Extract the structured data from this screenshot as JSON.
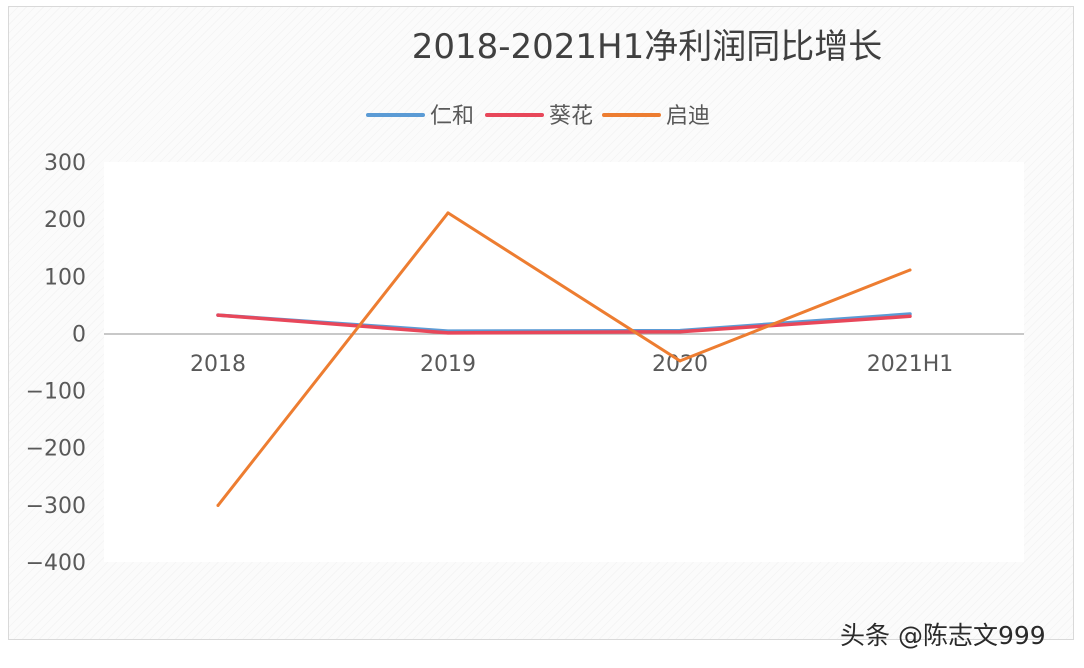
{
  "chart_data": {
    "type": "line",
    "title": "2018-2021H1净利润同比增长",
    "categories": [
      "2018",
      "2019",
      "2020",
      "2021H1"
    ],
    "series": [
      {
        "name": "仁和",
        "color": "#5b9bd5",
        "values": [
          32,
          4,
          5,
          34
        ]
      },
      {
        "name": "葵花",
        "color": "#e8475a",
        "values": [
          32,
          1,
          3,
          30
        ]
      },
      {
        "name": "启迪",
        "color": "#ed7d31",
        "values": [
          -301,
          211,
          -48,
          111
        ]
      }
    ],
    "ylim": [
      -400,
      300
    ],
    "yticks": [
      -400,
      -300,
      -200,
      -100,
      0,
      100,
      200,
      300
    ],
    "ytick_labels": [
      "−400",
      "−300",
      "−200",
      "−100",
      "0",
      "100",
      "200",
      "300"
    ],
    "xlabel": "",
    "ylabel": "",
    "legend_position": "top",
    "grid": false
  },
  "watermark": "头条 @陈志文999"
}
